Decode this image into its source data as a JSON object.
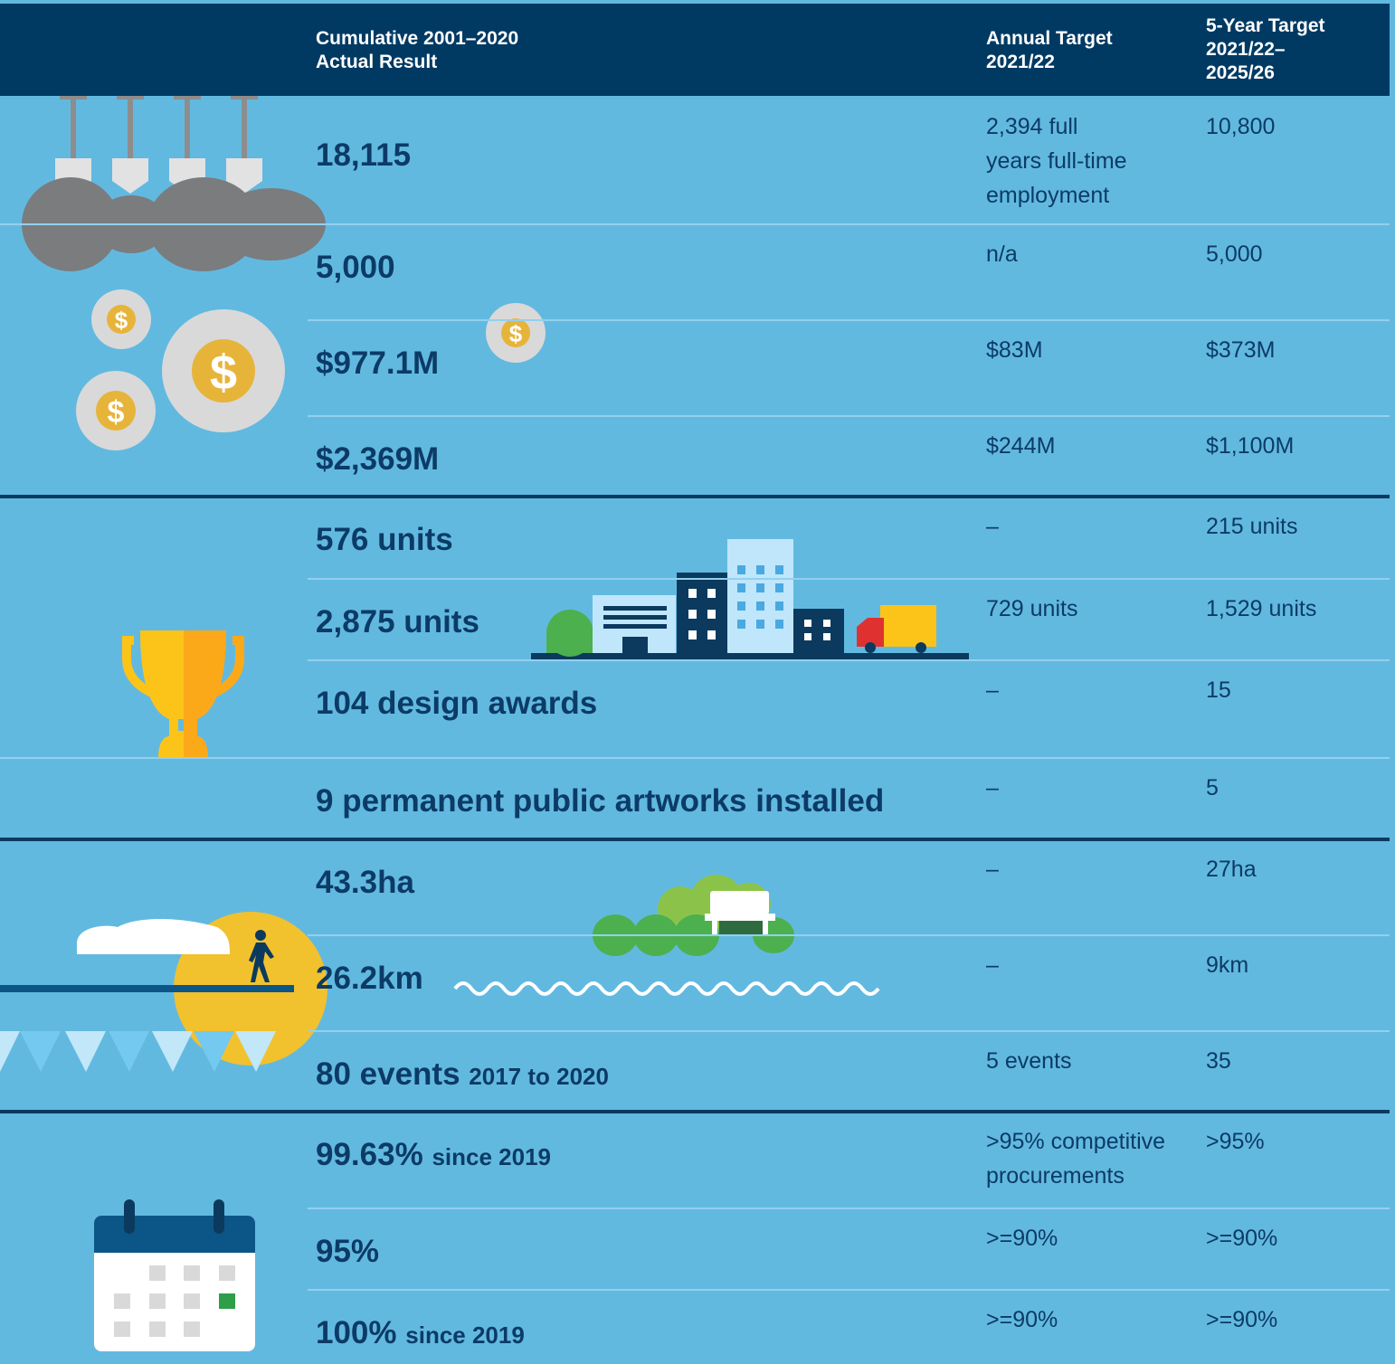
{
  "header": {
    "result": [
      "Cumulative 2001–2020",
      "Actual Result"
    ],
    "annual": [
      "Annual Target",
      "2021/22"
    ],
    "five_year": [
      "5-Year Target",
      "2021/22–",
      "2025/26"
    ]
  },
  "sections": [
    {
      "rows": [
        {
          "result": "18,115",
          "annual": [
            "2,394 full",
            "years full-time",
            "employment"
          ],
          "five_year": "10,800"
        },
        {
          "result": "5,000",
          "annual": [
            "n/a"
          ],
          "five_year": "5,000"
        },
        {
          "result": "$977.1M",
          "annual": [
            "$83M"
          ],
          "five_year": "$373M"
        },
        {
          "result": "$2,369M",
          "annual": [
            "$244M"
          ],
          "five_year": "$1,100M"
        }
      ]
    },
    {
      "rows": [
        {
          "result": "576 units",
          "annual": [
            "–"
          ],
          "five_year": "215 units"
        },
        {
          "result": "2,875 units",
          "annual": [
            "729 units"
          ],
          "five_year": "1,529 units"
        },
        {
          "result": "104 design awards",
          "annual": [
            "–"
          ],
          "five_year": "15"
        },
        {
          "result": "9 permanent public artworks installed",
          "annual": [
            "–"
          ],
          "five_year": "5"
        }
      ]
    },
    {
      "rows": [
        {
          "result": "43.3ha",
          "annual": [
            "–"
          ],
          "five_year": "27ha"
        },
        {
          "result": "26.2km",
          "annual": [
            "–"
          ],
          "five_year": "9km"
        },
        {
          "result": "80 events",
          "note": "2017 to 2020",
          "annual": [
            "5 events"
          ],
          "five_year": "35"
        }
      ]
    },
    {
      "rows": [
        {
          "result": "99.63%",
          "note": "since 2019",
          "annual": [
            ">95% competitive",
            "procurements"
          ],
          "five_year": ">95%"
        },
        {
          "result": "95%",
          "annual": [
            ">=90%"
          ],
          "five_year": ">=90%"
        },
        {
          "result": "100%",
          "note": "since 2019",
          "annual": [
            ">=90%"
          ],
          "five_year": ">=90%"
        }
      ]
    }
  ]
}
